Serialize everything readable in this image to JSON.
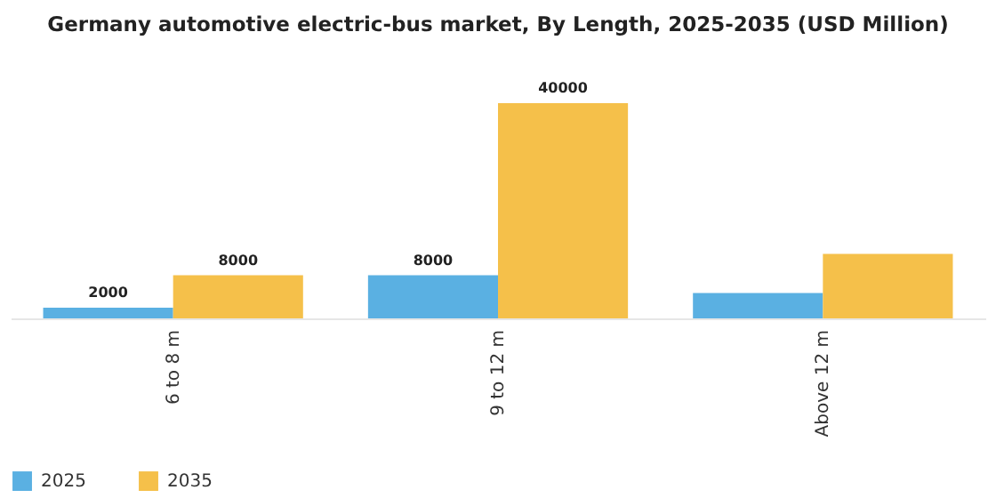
{
  "chart_data": {
    "type": "bar",
    "title": "Germany automotive electric-bus market, By Length, 2025-2035 (USD Million)",
    "categories": [
      "6 to 8 m",
      "9 to 12 m",
      "Above 12 m"
    ],
    "series": [
      {
        "name": "2025",
        "color": "#5ab0e2",
        "values": [
          2000,
          8000,
          4700
        ],
        "value_labels": [
          "2000",
          "8000",
          null
        ]
      },
      {
        "name": "2035",
        "color": "#f5c04a",
        "values": [
          8000,
          40000,
          12000
        ],
        "value_labels": [
          "8000",
          "40000",
          null
        ]
      }
    ],
    "legend": "bottom"
  }
}
